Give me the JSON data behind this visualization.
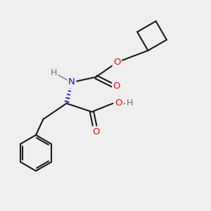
{
  "background_color": "#efefef",
  "bond_color": "#1a1a1a",
  "bond_width": 1.5,
  "atom_colors": {
    "O": "#ee1111",
    "N": "#1111cc",
    "H_gray": "#607080",
    "C": "#1a1a1a"
  },
  "font_size_atoms": 9.5,
  "figsize": [
    3.0,
    3.0
  ],
  "dpi": 100
}
